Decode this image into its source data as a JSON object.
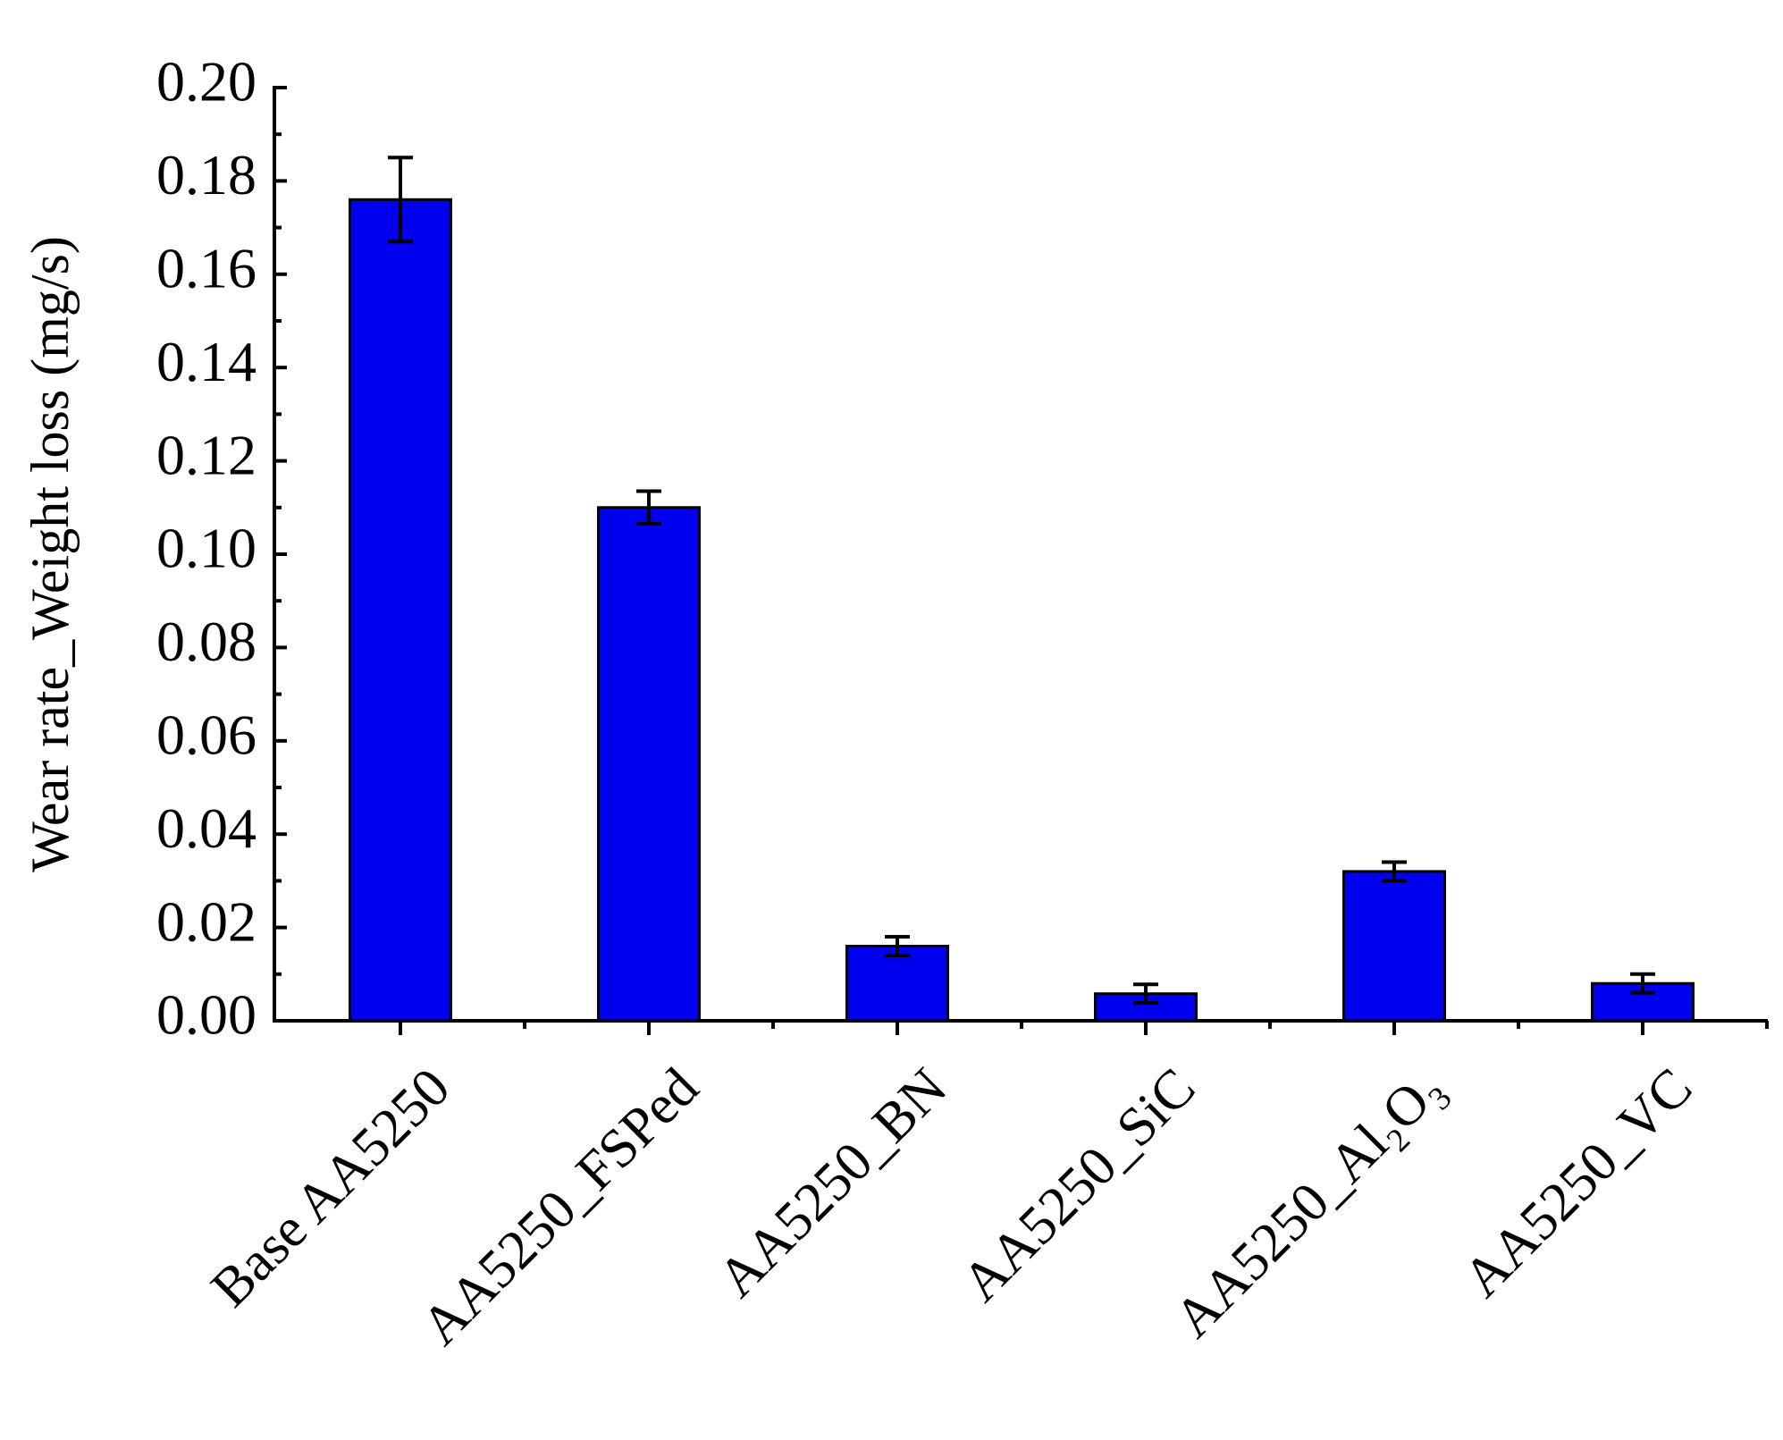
{
  "chart_data": {
    "type": "bar",
    "y_label": "Wear rate_Weight loss (mg/s)",
    "categories": [
      "Base AA5250",
      "AA5250_FSPed",
      "AA5250_BN",
      "AA5250_SiC",
      "AA5250_Al₂O₃",
      "AA5250_VC"
    ],
    "values": [
      0.176,
      0.11,
      0.016,
      0.0058,
      0.032,
      0.008
    ],
    "errors": [
      0.009,
      0.0035,
      0.002,
      0.002,
      0.002,
      0.002
    ],
    "color": "#0000ee",
    "ylim": [
      0,
      0.2
    ],
    "yticks": [
      {
        "value": 0,
        "label": "0.00"
      },
      {
        "value": 0.02,
        "label": "0.02"
      },
      {
        "value": 0.04,
        "label": "0.04"
      },
      {
        "value": 0.06,
        "label": "0.06"
      },
      {
        "value": 0.08,
        "label": "0.08"
      },
      {
        "value": 0.1,
        "label": "0.10"
      },
      {
        "value": 0.12,
        "label": "0.12"
      },
      {
        "value": 0.14,
        "label": "0.14"
      },
      {
        "value": 0.16,
        "label": "0.16"
      },
      {
        "value": 0.18,
        "label": "0.18"
      },
      {
        "value": 0.2,
        "label": "0.20"
      }
    ],
    "grid": false
  }
}
